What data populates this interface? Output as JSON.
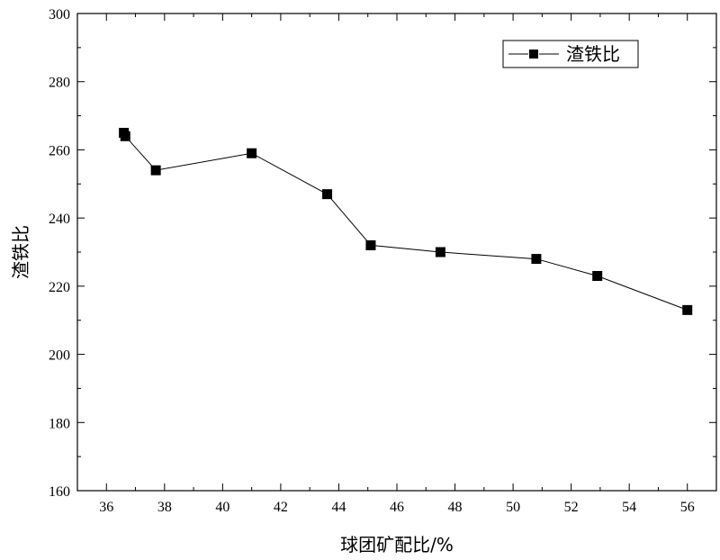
{
  "chart_data": {
    "type": "line",
    "xlabel": "球团矿配比/%",
    "ylabel": "渣铁比",
    "xlim": [
      35,
      57
    ],
    "ylim": [
      160,
      300
    ],
    "x_ticks": [
      36,
      38,
      40,
      42,
      44,
      46,
      48,
      50,
      52,
      54,
      56
    ],
    "y_ticks": [
      160,
      180,
      200,
      220,
      240,
      260,
      280,
      300
    ],
    "legend_position": "top-right",
    "series": [
      {
        "name": "渣铁比",
        "marker": "square",
        "color": "#000000",
        "x": [
          36.6,
          36.65,
          37.7,
          41.0,
          43.6,
          45.1,
          47.5,
          50.8,
          52.9,
          56.0
        ],
        "y": [
          265,
          264,
          254,
          259,
          247,
          232,
          230,
          228,
          223,
          213
        ]
      }
    ]
  }
}
